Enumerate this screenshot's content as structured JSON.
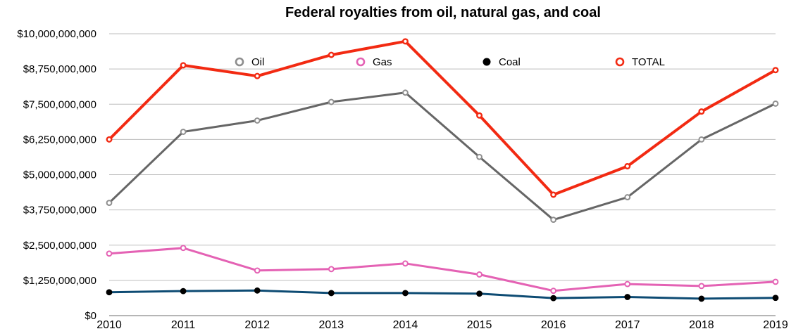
{
  "chart_data": {
    "type": "line",
    "title": "Federal royalties from oil, natural gas, and coal",
    "xlabel": "",
    "ylabel": "",
    "x": [
      "2010",
      "2011",
      "2012",
      "2013",
      "2014",
      "2015",
      "2016",
      "2017",
      "2018",
      "2019"
    ],
    "ylim": [
      0,
      10000000000
    ],
    "yticks": [
      0,
      1250000000,
      2500000000,
      3750000000,
      5000000000,
      6250000000,
      7500000000,
      8750000000,
      10000000000
    ],
    "ytick_labels": [
      "$0",
      "$1,250,000,000",
      "$2,500,000,000",
      "$3,750,000,000",
      "$5,000,000,000",
      "$6,250,000,000",
      "$7,500,000,000",
      "$8,750,000,000",
      "$10,000,000,000"
    ],
    "grid": true,
    "legend_position": "top",
    "series": [
      {
        "name": "Oil",
        "color": "#666666",
        "marker_stroke": "#8e8e8e",
        "marker_fill": "#ffffff",
        "values": [
          4000000000,
          6520000000,
          6920000000,
          7580000000,
          7910000000,
          5630000000,
          3400000000,
          4200000000,
          6250000000,
          7520000000
        ]
      },
      {
        "name": "Gas",
        "color": "#e462b4",
        "marker_stroke": "#e462b4",
        "marker_fill": "#ffffff",
        "values": [
          2200000000,
          2400000000,
          1600000000,
          1650000000,
          1850000000,
          1460000000,
          880000000,
          1120000000,
          1050000000,
          1200000000
        ]
      },
      {
        "name": "Coal",
        "color": "#0d4b73",
        "marker_stroke": "#000000",
        "marker_fill": "#000000",
        "values": [
          830000000,
          870000000,
          890000000,
          800000000,
          800000000,
          780000000,
          620000000,
          660000000,
          600000000,
          630000000
        ]
      },
      {
        "name": "TOTAL",
        "color": "#f22a12",
        "marker_stroke": "#f22a12",
        "marker_fill": "#ffffff",
        "values": [
          6250000000,
          8880000000,
          8500000000,
          9250000000,
          9730000000,
          7100000000,
          4290000000,
          5300000000,
          7240000000,
          8710000000
        ]
      }
    ]
  }
}
